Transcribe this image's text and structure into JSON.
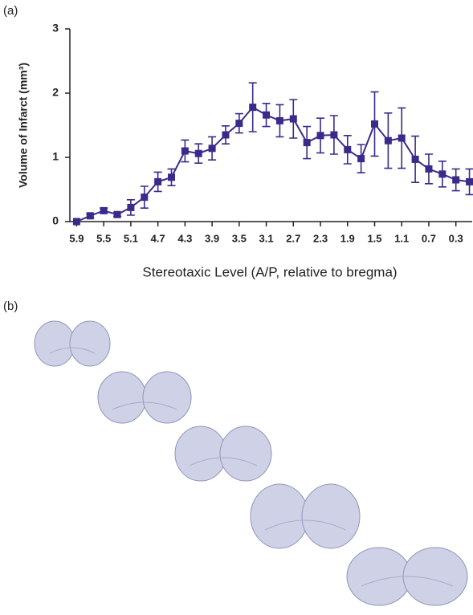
{
  "panel_a_label": "(a)",
  "panel_b_label": "(b)",
  "chart_data": {
    "type": "line",
    "y_label": "Volume of Infarct (mm³)",
    "x_label": "Stereotaxic Level (A/P, relative to bregma)",
    "x": [
      5.9,
      5.7,
      5.5,
      5.3,
      5.1,
      4.9,
      4.7,
      4.5,
      4.3,
      4.1,
      3.9,
      3.7,
      3.5,
      3.3,
      3.1,
      2.9,
      2.7,
      2.5,
      2.3,
      2.1,
      1.9,
      1.7,
      1.5,
      1.3,
      1.1,
      0.9,
      0.7,
      0.5,
      0.3,
      0.1
    ],
    "values": [
      0,
      0.09,
      0.17,
      0.11,
      0.22,
      0.38,
      0.62,
      0.69,
      1.1,
      1.06,
      1.14,
      1.35,
      1.53,
      1.78,
      1.66,
      1.57,
      1.6,
      1.23,
      1.34,
      1.35,
      1.12,
      0.98,
      1.52,
      1.26,
      1.3,
      0.97,
      0.82,
      0.74,
      0.65,
      0.62
    ],
    "errors": [
      0,
      0.03,
      0.04,
      0.03,
      0.12,
      0.17,
      0.15,
      0.13,
      0.17,
      0.15,
      0.18,
      0.14,
      0.15,
      0.38,
      0.18,
      0.25,
      0.3,
      0.25,
      0.27,
      0.3,
      0.22,
      0.22,
      0.5,
      0.43,
      0.47,
      0.36,
      0.23,
      0.2,
      0.17,
      0.2
    ],
    "color": "#3b2a8a",
    "xlim": [
      6.0,
      0.0
    ],
    "xticks": [
      5.9,
      5.5,
      5.1,
      4.7,
      4.3,
      3.9,
      3.5,
      3.1,
      2.7,
      2.3,
      1.9,
      1.5,
      1.1,
      0.7,
      0.3
    ],
    "ylim": [
      0,
      3
    ],
    "yticks": [
      0,
      1,
      2,
      3
    ]
  }
}
